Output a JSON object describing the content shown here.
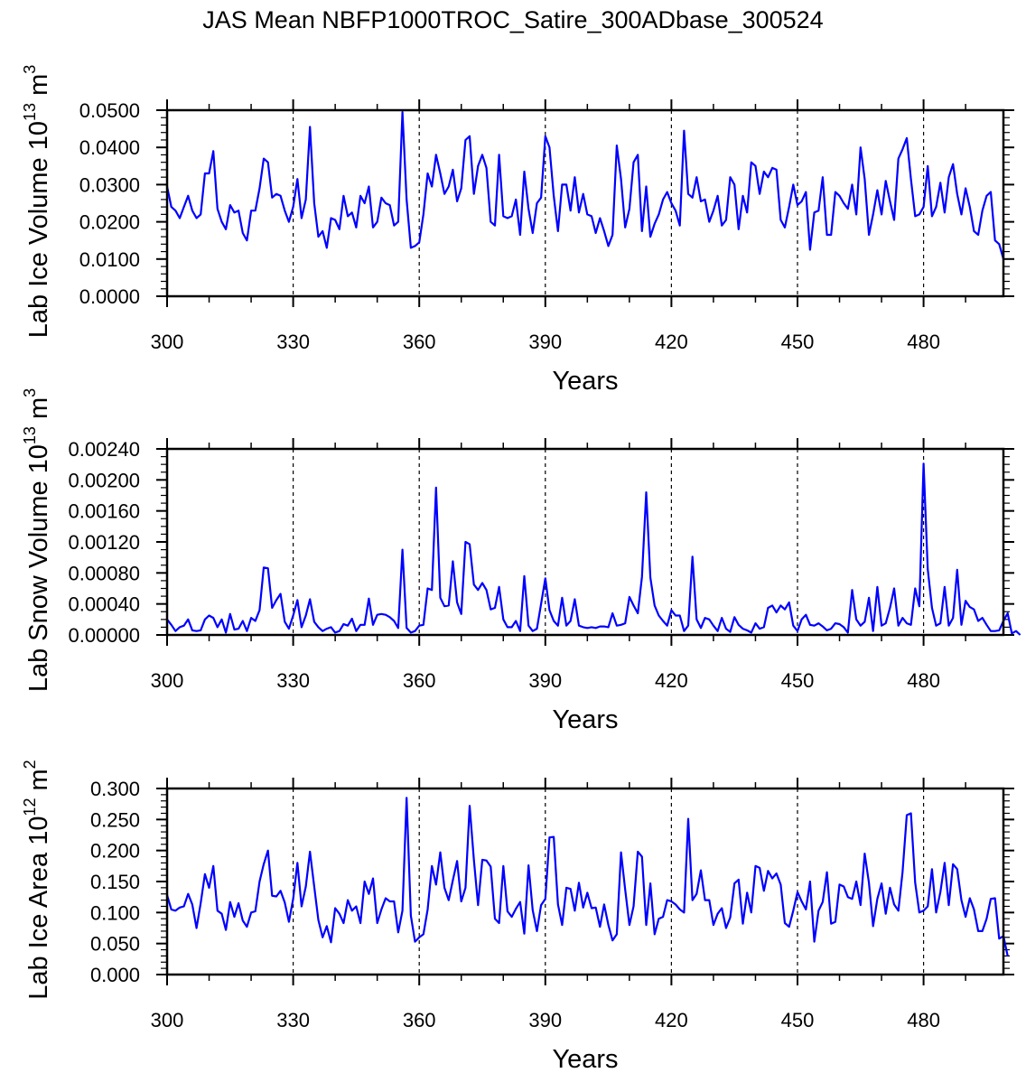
{
  "chart_data": {
    "title": "JAS Mean NBFP1000TROC_Satire_300ADbase_300524",
    "panels": [
      {
        "type": "line",
        "ylabel": "Lab Ice Volume 10",
        "ylabel_exp": "13",
        "ylabel_unit": " m",
        "ylabel_unit_exp": "3",
        "xlabel": "Years",
        "xlim": [
          300,
          499
        ],
        "ylim": [
          0,
          0.05
        ],
        "xticks": [
          300,
          330,
          360,
          390,
          420,
          450,
          480
        ],
        "xtick_labels": [
          "300",
          "330",
          "360",
          "390",
          "420",
          "450",
          "480"
        ],
        "yticks": [
          0,
          0.01,
          0.02,
          0.03,
          0.04,
          0.05
        ],
        "ytick_labels": [
          "0.0000",
          "0.0100",
          "0.0200",
          "0.0300",
          "0.0400",
          "0.0500"
        ],
        "yminor_step": 0.002,
        "grid_x": "dashed verticals at major ticks",
        "color": "#0000ff",
        "x_start": 300,
        "values": [
          0.0295,
          0.024,
          0.023,
          0.021,
          0.024,
          0.027,
          0.023,
          0.021,
          0.022,
          0.033,
          0.033,
          0.039,
          0.0235,
          0.02,
          0.018,
          0.0245,
          0.0225,
          0.023,
          0.017,
          0.015,
          0.023,
          0.023,
          0.029,
          0.037,
          0.036,
          0.0265,
          0.0275,
          0.027,
          0.023,
          0.02,
          0.024,
          0.0315,
          0.021,
          0.026,
          0.0455,
          0.025,
          0.016,
          0.0175,
          0.013,
          0.021,
          0.0205,
          0.018,
          0.027,
          0.0215,
          0.0225,
          0.0185,
          0.027,
          0.025,
          0.0295,
          0.0185,
          0.02,
          0.0265,
          0.025,
          0.0245,
          0.019,
          0.02,
          0.0495,
          0.026,
          0.013,
          0.0135,
          0.0145,
          0.022,
          0.033,
          0.0295,
          0.038,
          0.033,
          0.0275,
          0.0295,
          0.034,
          0.0255,
          0.029,
          0.042,
          0.043,
          0.0275,
          0.035,
          0.038,
          0.0345,
          0.02,
          0.019,
          0.038,
          0.0215,
          0.021,
          0.0215,
          0.026,
          0.0165,
          0.0335,
          0.0235,
          0.017,
          0.025,
          0.0265,
          0.043,
          0.04,
          0.027,
          0.0175,
          0.03,
          0.03,
          0.023,
          0.032,
          0.0225,
          0.0275,
          0.022,
          0.0215,
          0.017,
          0.021,
          0.0175,
          0.0135,
          0.0165,
          0.0405,
          0.0315,
          0.0185,
          0.0235,
          0.036,
          0.038,
          0.0175,
          0.0295,
          0.016,
          0.0195,
          0.022,
          0.026,
          0.028,
          0.025,
          0.023,
          0.019,
          0.0445,
          0.0275,
          0.0265,
          0.032,
          0.0255,
          0.026,
          0.02,
          0.023,
          0.027,
          0.019,
          0.0205,
          0.032,
          0.03,
          0.018,
          0.027,
          0.0225,
          0.036,
          0.035,
          0.0275,
          0.0335,
          0.032,
          0.0345,
          0.034,
          0.0205,
          0.0185,
          0.024,
          0.03,
          0.0245,
          0.0255,
          0.028,
          0.0125,
          0.0225,
          0.023,
          0.032,
          0.0165,
          0.0165,
          0.028,
          0.027,
          0.025,
          0.0235,
          0.03,
          0.022,
          0.04,
          0.0315,
          0.0165,
          0.022,
          0.0285,
          0.022,
          0.031,
          0.0255,
          0.0205,
          0.037,
          0.0395,
          0.0425,
          0.0315,
          0.0215,
          0.022,
          0.024,
          0.035,
          0.0215,
          0.024,
          0.0305,
          0.0225,
          0.032,
          0.0355,
          0.0275,
          0.022,
          0.029,
          0.024,
          0.0175,
          0.0165,
          0.023,
          0.027,
          0.028,
          0.015,
          0.014,
          0.01
        ]
      },
      {
        "type": "line",
        "ylabel": "Lab Snow Volume 10",
        "ylabel_exp": "13",
        "ylabel_unit": " m",
        "ylabel_unit_exp": "3",
        "xlabel": "Years",
        "xlim": [
          300,
          499
        ],
        "ylim": [
          0,
          0.0024
        ],
        "xticks": [
          300,
          330,
          360,
          390,
          420,
          450,
          480
        ],
        "xtick_labels": [
          "300",
          "330",
          "360",
          "390",
          "420",
          "450",
          "480"
        ],
        "yticks": [
          0,
          0.0004,
          0.0008,
          0.0012,
          0.0016,
          0.002,
          0.0024
        ],
        "ytick_labels": [
          "0.00000",
          "0.00040",
          "0.00080",
          "0.00120",
          "0.00160",
          "0.00200",
          "0.00240"
        ],
        "yminor_step": 0.0001,
        "grid_x": "dashed verticals at major ticks",
        "color": "#0000ff",
        "x_start": 300,
        "values": [
          0.0002,
          0.00013,
          5e-05,
          0.0001,
          0.00012,
          0.0002,
          6e-05,
          5e-05,
          6e-05,
          0.0002,
          0.00025,
          0.00022,
          0.0001,
          0.0002,
          3e-05,
          0.00027,
          7e-05,
          8e-05,
          0.00018,
          5e-05,
          0.00022,
          0.00018,
          0.00032,
          0.00087,
          0.00086,
          0.00035,
          0.00045,
          0.00053,
          0.00017,
          8e-05,
          0.00025,
          0.00045,
          0.0001,
          0.00025,
          0.00046,
          0.00017,
          0.0001,
          5e-05,
          8e-05,
          0.0001,
          3e-05,
          5e-05,
          0.00014,
          0.00012,
          0.00021,
          5e-05,
          0.00013,
          0.00013,
          0.00047,
          0.00013,
          0.00026,
          0.00027,
          0.00026,
          0.00023,
          0.00018,
          9e-05,
          0.0011,
          9e-05,
          3e-05,
          5e-05,
          0.00012,
          0.00013,
          0.0006,
          0.00058,
          0.0019,
          0.00048,
          0.00037,
          0.00038,
          0.00095,
          0.00042,
          0.00027,
          0.0012,
          0.00117,
          0.00065,
          0.00058,
          0.00067,
          0.00058,
          0.00033,
          0.00035,
          0.00062,
          0.0002,
          0.0001,
          0.0001,
          0.00018,
          5e-05,
          0.00076,
          0.00012,
          5e-05,
          8e-05,
          0.0004,
          0.00073,
          0.00032,
          0.00018,
          0.00012,
          0.00048,
          0.00012,
          0.00018,
          0.00046,
          0.00012,
          0.0001,
          9e-05,
          0.0001,
          9e-05,
          0.00011,
          0.00011,
          0.0001,
          0.00028,
          0.00012,
          0.00013,
          0.00015,
          0.00049,
          0.00038,
          0.00028,
          0.00075,
          0.00184,
          0.00074,
          0.00038,
          0.00025,
          0.00018,
          0.00012,
          0.00032,
          0.00025,
          0.00025,
          5e-05,
          0.00012,
          0.00101,
          0.0002,
          9e-05,
          0.00022,
          0.0002,
          0.00012,
          5e-05,
          0.00022,
          8e-05,
          4e-05,
          0.00023,
          0.00013,
          8e-05,
          6e-05,
          3e-05,
          0.00015,
          8e-05,
          0.0001,
          0.00035,
          0.00038,
          0.00029,
          0.00038,
          0.00033,
          0.00042,
          0.00012,
          5e-05,
          0.0002,
          0.00026,
          0.00013,
          0.00012,
          0.00015,
          0.00011,
          6e-05,
          8e-05,
          0.00015,
          0.00014,
          0.0001,
          3e-05,
          0.00058,
          0.0002,
          0.00012,
          0.00017,
          0.00048,
          5e-05,
          0.00062,
          0.00012,
          0.00015,
          0.00035,
          0.0006,
          0.00012,
          0.00022,
          0.00015,
          0.00013,
          0.0006,
          0.00037,
          0.00221,
          0.00085,
          0.00035,
          0.00012,
          0.00015,
          0.00062,
          0.00012,
          0.00022,
          0.00084,
          0.00013,
          0.00044,
          0.00036,
          0.00033,
          0.00018,
          0.00022,
          0.00013,
          5e-05,
          5e-05,
          6e-05,
          0.00018,
          0.00028,
          2e-05,
          5e-05,
          0.0
        ]
      },
      {
        "type": "line",
        "ylabel": "Lab Ice Area 10",
        "ylabel_exp": "12",
        "ylabel_unit": " m",
        "ylabel_unit_exp": "2",
        "xlabel": "Years",
        "xlim": [
          300,
          499
        ],
        "ylim": [
          0,
          0.3
        ],
        "xticks": [
          300,
          330,
          360,
          390,
          420,
          450,
          480
        ],
        "xtick_labels": [
          "300",
          "330",
          "360",
          "390",
          "420",
          "450",
          "480"
        ],
        "yticks": [
          0,
          0.05,
          0.1,
          0.15,
          0.2,
          0.25,
          0.3
        ],
        "ytick_labels": [
          "0.000",
          "0.050",
          "0.100",
          "0.150",
          "0.200",
          "0.250",
          "0.300"
        ],
        "yminor_step": 0.01,
        "grid_x": "dashed verticals at major ticks",
        "color": "#0000ff",
        "x_start": 300,
        "values": [
          0.128,
          0.105,
          0.103,
          0.108,
          0.11,
          0.13,
          0.113,
          0.075,
          0.115,
          0.162,
          0.14,
          0.175,
          0.103,
          0.098,
          0.072,
          0.117,
          0.093,
          0.115,
          0.087,
          0.077,
          0.1,
          0.102,
          0.15,
          0.178,
          0.2,
          0.127,
          0.126,
          0.135,
          0.116,
          0.085,
          0.122,
          0.18,
          0.11,
          0.142,
          0.198,
          0.142,
          0.088,
          0.06,
          0.078,
          0.052,
          0.107,
          0.098,
          0.083,
          0.12,
          0.103,
          0.11,
          0.083,
          0.15,
          0.13,
          0.155,
          0.083,
          0.105,
          0.123,
          0.118,
          0.118,
          0.068,
          0.103,
          0.285,
          0.095,
          0.053,
          0.06,
          0.065,
          0.105,
          0.175,
          0.145,
          0.197,
          0.14,
          0.12,
          0.152,
          0.183,
          0.118,
          0.14,
          0.272,
          0.185,
          0.112,
          0.185,
          0.184,
          0.174,
          0.09,
          0.083,
          0.175,
          0.102,
          0.093,
          0.106,
          0.117,
          0.066,
          0.176,
          0.104,
          0.07,
          0.112,
          0.122,
          0.221,
          0.222,
          0.113,
          0.08,
          0.14,
          0.138,
          0.103,
          0.148,
          0.108,
          0.132,
          0.107,
          0.108,
          0.077,
          0.113,
          0.08,
          0.055,
          0.065,
          0.197,
          0.137,
          0.08,
          0.11,
          0.198,
          0.19,
          0.08,
          0.147,
          0.065,
          0.09,
          0.093,
          0.12,
          0.118,
          0.113,
          0.105,
          0.1,
          0.251,
          0.12,
          0.13,
          0.168,
          0.12,
          0.12,
          0.08,
          0.098,
          0.107,
          0.075,
          0.092,
          0.147,
          0.153,
          0.082,
          0.132,
          0.1,
          0.175,
          0.172,
          0.135,
          0.167,
          0.155,
          0.163,
          0.145,
          0.083,
          0.077,
          0.103,
          0.133,
          0.118,
          0.105,
          0.15,
          0.053,
          0.103,
          0.117,
          0.165,
          0.082,
          0.085,
          0.145,
          0.142,
          0.125,
          0.122,
          0.15,
          0.112,
          0.195,
          0.148,
          0.078,
          0.122,
          0.147,
          0.098,
          0.14,
          0.113,
          0.103,
          0.165,
          0.257,
          0.26,
          0.148,
          0.1,
          0.103,
          0.11,
          0.17,
          0.1,
          0.133,
          0.18,
          0.112,
          0.178,
          0.17,
          0.12,
          0.093,
          0.123,
          0.105,
          0.07,
          0.07,
          0.09,
          0.122,
          0.123,
          0.058,
          0.062,
          0.03
        ]
      }
    ]
  }
}
